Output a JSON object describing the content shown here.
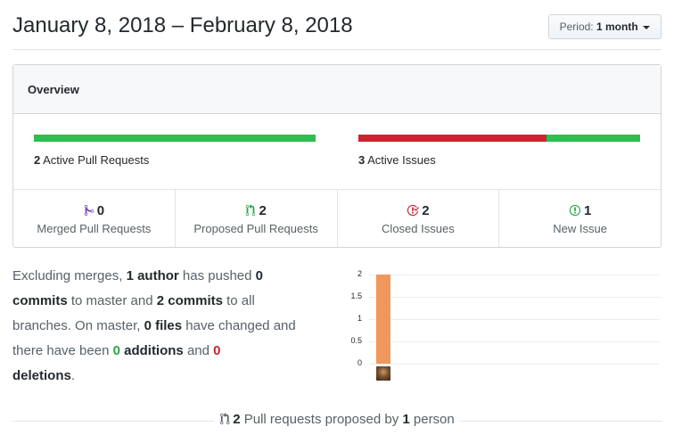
{
  "header": {
    "title": "January 8, 2018 – February 8, 2018",
    "period_prefix": "Period:",
    "period_value": "1 month"
  },
  "overview": {
    "title": "Overview",
    "pull_requests": {
      "count": "2",
      "label": "Active Pull Requests",
      "merged_fraction": 0,
      "proposed_fraction": 1
    },
    "issues": {
      "count": "3",
      "label": "Active Issues",
      "closed_fraction": 0.667,
      "new_fraction": 0.333
    }
  },
  "stats": [
    {
      "icon": "git-merge-icon",
      "count": "0",
      "label": "Merged Pull Requests",
      "color": "#6f42c1"
    },
    {
      "icon": "git-pull-request-icon",
      "count": "2",
      "label": "Proposed Pull Requests",
      "color": "#28a745"
    },
    {
      "icon": "issue-closed-icon",
      "count": "2",
      "label": "Closed Issues",
      "color": "#cb2431"
    },
    {
      "icon": "issue-opened-icon",
      "count": "1",
      "label": "New Issue",
      "color": "#28a745"
    }
  ],
  "summary": {
    "t1": "Excluding merges, ",
    "authors": "1 author",
    "t2": " has pushed ",
    "master_commits": "0 commits",
    "t3": " to master and ",
    "all_commits": "2 commits",
    "t4": " to all branches. On master, ",
    "files": "0 files",
    "t5": " have changed and there have been ",
    "additions_n": "0",
    "additions_w": " additions",
    "t6": " and ",
    "deletions_n": "0",
    "deletions_w": "deletions",
    "t7": "."
  },
  "chart_data": {
    "type": "bar",
    "categories": [
      "author-1"
    ],
    "values": [
      2
    ],
    "ylim": [
      0,
      2
    ],
    "yticks": [
      "0",
      "0.5",
      "1",
      "1.5",
      "2"
    ],
    "bar_color": "#f0975c"
  },
  "footer": {
    "count": "2",
    "t1": " Pull requests proposed by ",
    "people": "1",
    "t2": " person"
  },
  "colors": {
    "green": "#2cbe4e",
    "red": "#cb2431",
    "purple": "#6f42c1",
    "orange": "#f0975c"
  }
}
